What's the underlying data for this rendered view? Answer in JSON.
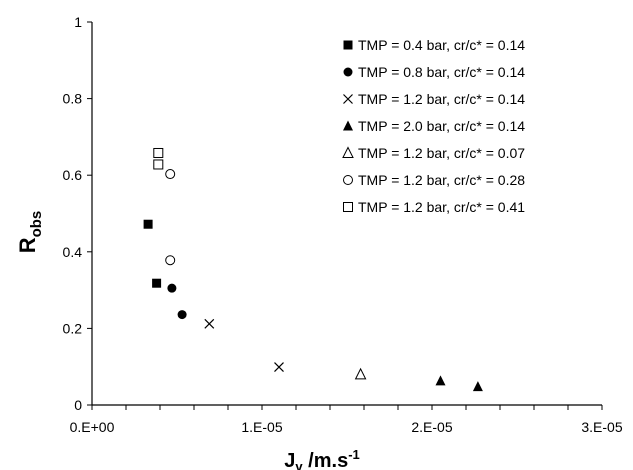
{
  "chart_data": {
    "type": "scatter",
    "title": "",
    "xlabel": {
      "main": "J",
      "sub": "v",
      "rest": " /m.s",
      "sup": "-1"
    },
    "ylabel": {
      "main": "R",
      "sub": "obs"
    },
    "xlim": [
      0,
      3e-05
    ],
    "ylim": [
      0,
      1
    ],
    "x_ticks": [
      0,
      1e-05,
      2e-05,
      3e-05
    ],
    "x_tick_labels": [
      "0.E+00",
      "1.E-05",
      "2.E-05",
      "3.E-05"
    ],
    "x_minor_step": 2e-06,
    "y_ticks": [
      0,
      0.2,
      0.4,
      0.6,
      0.8,
      1
    ],
    "y_tick_labels": [
      "0",
      "0.2",
      "0.4",
      "0.6",
      "0.8",
      "1"
    ],
    "grid": false,
    "legend_position": "top-right",
    "series": [
      {
        "name": "TMP = 0.4 bar, cr/c* = 0.14",
        "marker": "square-filled",
        "points": [
          [
            3.3e-06,
            0.472
          ],
          [
            3.8e-06,
            0.318
          ]
        ]
      },
      {
        "name": "TMP = 0.8 bar, cr/c* = 0.14",
        "marker": "circle-filled",
        "points": [
          [
            4.7e-06,
            0.305
          ],
          [
            5.3e-06,
            0.236
          ]
        ]
      },
      {
        "name": "TMP = 1.2 bar, cr/c* = 0.14",
        "marker": "x",
        "points": [
          [
            6.9e-06,
            0.212
          ],
          [
            1.1e-05,
            0.099
          ]
        ]
      },
      {
        "name": "TMP = 2.0 bar, cr/c* = 0.14",
        "marker": "triangle-filled",
        "points": [
          [
            2.05e-05,
            0.063
          ],
          [
            2.27e-05,
            0.048
          ]
        ]
      },
      {
        "name": "TMP = 1.2 bar, cr/c* = 0.07",
        "marker": "triangle-open",
        "points": [
          [
            1.58e-05,
            0.08
          ]
        ]
      },
      {
        "name": "TMP = 1.2 bar, cr/c* = 0.28",
        "marker": "circle-open",
        "points": [
          [
            4.6e-06,
            0.603
          ],
          [
            4.6e-06,
            0.378
          ]
        ]
      },
      {
        "name": "TMP = 1.2 bar, cr/c* = 0.41",
        "marker": "square-open",
        "points": [
          [
            3.9e-06,
            0.658
          ],
          [
            3.9e-06,
            0.628
          ]
        ]
      }
    ]
  }
}
